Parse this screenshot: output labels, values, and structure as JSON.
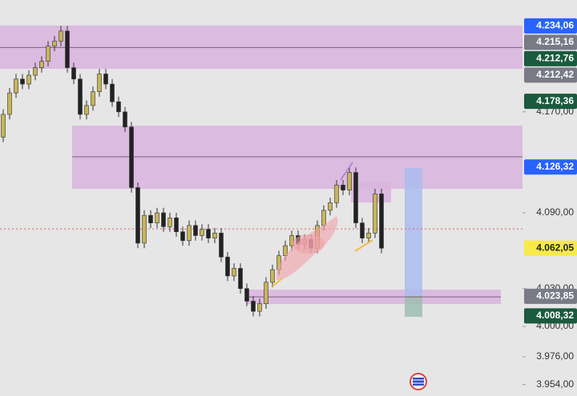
{
  "chart_data": {
    "type": "candlestick",
    "ylim": [
      3944.9,
      4258.6
    ],
    "yticks": [
      {
        "value": 4170,
        "label": "4.170,00"
      },
      {
        "value": 4090,
        "label": "4.090,00"
      },
      {
        "value": 4030,
        "label": "4.030,00"
      },
      {
        "value": 4000,
        "label": "4.000,00"
      },
      {
        "value": 3976,
        "label": "3.976,00"
      },
      {
        "value": 3954,
        "label": "3.954,00"
      }
    ],
    "up_color": "#c9b45a",
    "down_color": "#222222",
    "open": [
      4150,
      4168,
      4185,
      4196,
      4192,
      4199,
      4205,
      4210,
      4222,
      4226,
      4234,
      4205,
      4196,
      4168,
      4175,
      4186,
      4200,
      4192,
      4178,
      4170,
      4158,
      4110,
      4066,
      4088,
      4082,
      4090,
      4079,
      4086,
      4075,
      4068,
      4080,
      4072,
      4077,
      4070,
      4074,
      4055,
      4040,
      4046,
      4030,
      4020,
      4012,
      4018,
      4035,
      4045,
      4056,
      4064,
      4072,
      4065,
      4069,
      4062,
      4080,
      4092,
      4098,
      4112,
      4108,
      4122,
      4082,
      4070,
      4074,
      4105
    ],
    "high": [
      4172,
      4189,
      4200,
      4200,
      4203,
      4209,
      4214,
      4226,
      4230,
      4238,
      4238,
      4209,
      4200,
      4179,
      4190,
      4204,
      4204,
      4196,
      4182,
      4174,
      4162,
      4114,
      4092,
      4092,
      4094,
      4094,
      4090,
      4090,
      4079,
      4084,
      4084,
      4081,
      4081,
      4078,
      4078,
      4059,
      4050,
      4050,
      4034,
      4024,
      4022,
      4039,
      4049,
      4060,
      4068,
      4076,
      4076,
      4073,
      4073,
      4084,
      4096,
      4102,
      4116,
      4116,
      4126,
      4126,
      4086,
      4078,
      4109,
      4109
    ],
    "low": [
      4146,
      4164,
      4181,
      4188,
      4188,
      4195,
      4201,
      4206,
      4218,
      4222,
      4201,
      4192,
      4164,
      4164,
      4171,
      4182,
      4188,
      4174,
      4166,
      4154,
      4106,
      4062,
      4062,
      4078,
      4078,
      4075,
      4075,
      4071,
      4064,
      4064,
      4068,
      4068,
      4066,
      4066,
      4051,
      4036,
      4036,
      4026,
      4016,
      4008,
      4008,
      4014,
      4031,
      4041,
      4052,
      4060,
      4061,
      4061,
      4058,
      4058,
      4076,
      4088,
      4094,
      4104,
      4104,
      4078,
      4066,
      4066,
      4070,
      4058
    ],
    "close": [
      4168,
      4185,
      4196,
      4192,
      4199,
      4205,
      4210,
      4222,
      4226,
      4234,
      4205,
      4196,
      4168,
      4175,
      4186,
      4200,
      4192,
      4178,
      4170,
      4158,
      4110,
      4066,
      4088,
      4082,
      4090,
      4079,
      4086,
      4075,
      4068,
      4080,
      4072,
      4077,
      4070,
      4074,
      4055,
      4040,
      4046,
      4030,
      4020,
      4012,
      4018,
      4035,
      4045,
      4056,
      4064,
      4072,
      4065,
      4069,
      4062,
      4080,
      4092,
      4098,
      4112,
      4108,
      4122,
      4082,
      4070,
      4074,
      4105,
      4062
    ],
    "zones": [
      {
        "top": 4238.4,
        "bottom": 4204.1,
        "color": "#d9b6df"
      },
      {
        "top": 4159.1,
        "bottom": 4109.0,
        "color": "#d9b6df"
      },
      {
        "top": 4029.2,
        "bottom": 4017.7,
        "color": "#d9b6df"
      },
      {
        "top": 4114.1,
        "bottom": 4098.2,
        "color": "#d9b6df"
      },
      {
        "top": 4125.5,
        "bottom": 4024.1,
        "color": "#a9bcef"
      },
      {
        "top": 4024.1,
        "bottom": 4007.6,
        "color": "#9dbdb0"
      }
    ],
    "lines": [
      {
        "value": 4221.0,
        "color": "#7d5f80"
      },
      {
        "value": 4134.4,
        "color": "#7d5f80"
      },
      {
        "value": 4023.4,
        "color": "#7d5f80"
      },
      {
        "value": 4077.3,
        "color": "#e06464",
        "dotted": true
      }
    ],
    "price_labels": [
      {
        "value": 4234.06,
        "label": "4.234,06",
        "color": "#2962ff"
      },
      {
        "value": 4215.16,
        "label": "4.215,16",
        "color": "#787b86"
      },
      {
        "value": 4212.76,
        "label": "4.212,76",
        "color": "#1a5a3e"
      },
      {
        "value": 4212.42,
        "label": "4.212,42",
        "color": "#787b86"
      },
      {
        "value": 4178.36,
        "label": "4.178,36",
        "color": "#1a5a3e"
      },
      {
        "value": 4126.32,
        "label": "4.126,32",
        "color": "#2962ff"
      },
      {
        "value": 4062.05,
        "label": "4.062,05",
        "color": "#f7ea48"
      },
      {
        "value": 4023.85,
        "label": "4.023,85",
        "color": "#787b86"
      },
      {
        "value": 4008.32,
        "label": "4.008,32",
        "color": "#1a5a3e"
      }
    ]
  }
}
